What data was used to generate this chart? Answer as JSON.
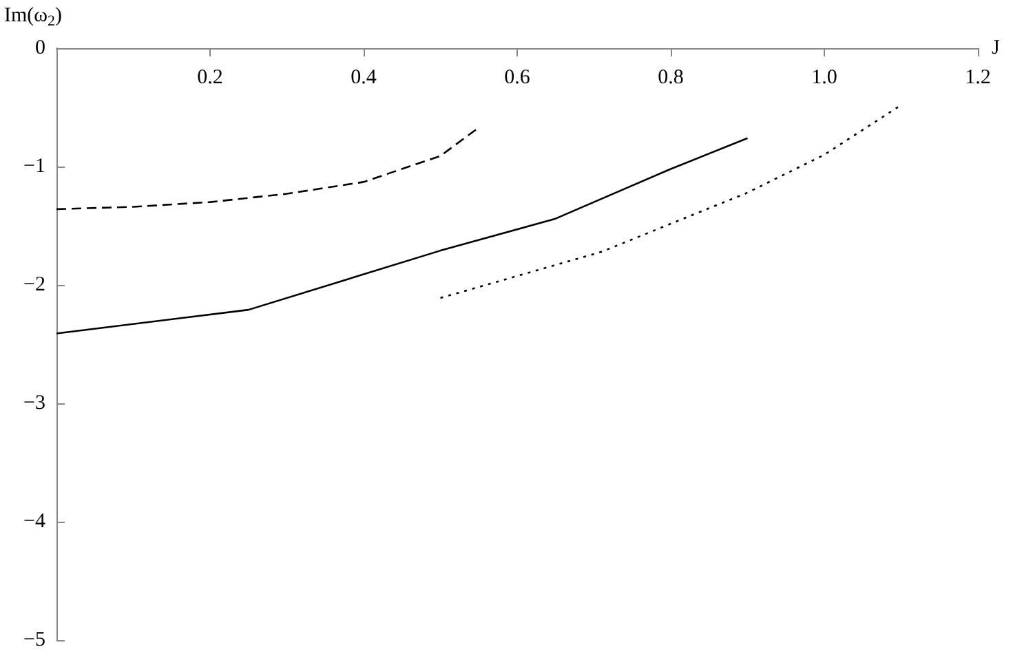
{
  "chart_data": {
    "type": "line",
    "xlabel": "J",
    "ylabel": "Im(ω$_{2}$)",
    "xlim": [
      0,
      1.2
    ],
    "ylim": [
      -5,
      0
    ],
    "xticks": [
      0.2,
      0.4,
      0.6,
      0.8,
      {
        "value": 1,
        "label": "1.0"
      },
      1.2
    ],
    "yticks": [
      0,
      -1,
      -2,
      -3,
      -4,
      -5
    ],
    "grid": false,
    "marker": "none",
    "series": [
      {
        "color": "#000000",
        "line_style": "dashed",
        "x": [
          0,
          0.1,
          0.2,
          0.3,
          0.4,
          0.5,
          0.55
        ],
        "values": [
          -1.36,
          -1.34,
          -1.3,
          -1.23,
          -1.13,
          -0.91,
          -0.67
        ]
      },
      {
        "color": "#000000",
        "line_style": "solid",
        "x": [
          0,
          0.25,
          0.5,
          0.65,
          0.8,
          0.9
        ],
        "values": [
          -2.41,
          -2.21,
          -1.71,
          -1.44,
          -1.02,
          -0.76
        ]
      },
      {
        "color": "#000000",
        "line_style": "dotted",
        "x": [
          0.5,
          0.71,
          0.9,
          1.0,
          1.1
        ],
        "values": [
          -2.11,
          -1.72,
          -1.22,
          -0.9,
          -0.48
        ]
      }
    ]
  }
}
